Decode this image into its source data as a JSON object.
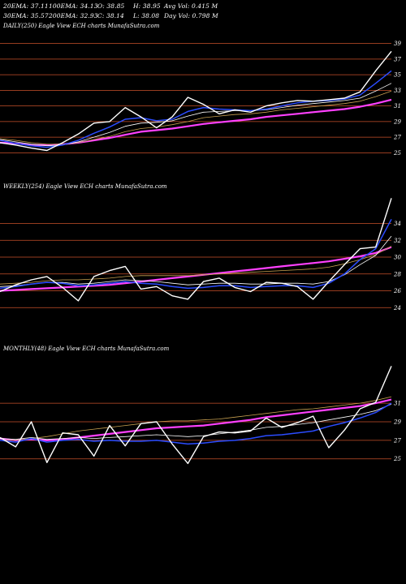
{
  "header": {
    "row1": [
      {
        "label": "20EMA: 37.11"
      },
      {
        "label": "100EMA: 34.13"
      },
      {
        "label": "O: 38.85"
      },
      {
        "label": "H: 38.95"
      },
      {
        "label": "Avg Vol: 0.415 M"
      }
    ],
    "row2": [
      {
        "label": "30EMA: 35.57"
      },
      {
        "label": "200EMA: 32.93"
      },
      {
        "label": "C: 38.14"
      },
      {
        "label": "L: 38.08"
      },
      {
        "label": "Day Vol: 0.798 M"
      }
    ]
  },
  "colors": {
    "price": "#ffffff",
    "ema_fast": "#2b4cff",
    "ema_mid": "#ffffff",
    "ema_slow": "#c8a050",
    "ema_long": "#ff40ff",
    "gridline": "#c8502a"
  },
  "chart_data": [
    {
      "type": "line",
      "title": "DAILY(250) Eagle  View  ECH charts MunafaSutra.com",
      "yticks": [
        25,
        27,
        29,
        31,
        33,
        35,
        37,
        39
      ],
      "ylim": [
        24,
        40
      ],
      "x": [
        0,
        10,
        20,
        30,
        40,
        50,
        60,
        70,
        80,
        90,
        100,
        110,
        120,
        130,
        140,
        150,
        160,
        170,
        180,
        190,
        200,
        210,
        220,
        230,
        240,
        250
      ],
      "series": [
        {
          "role": "price",
          "values": [
            26.3,
            26.0,
            25.6,
            25.3,
            26.3,
            27.4,
            28.8,
            29.0,
            30.8,
            29.6,
            28.2,
            29.6,
            32.1,
            31.2,
            30.0,
            30.5,
            30.2,
            31.0,
            31.4,
            31.7,
            31.6,
            31.8,
            32.0,
            32.8,
            35.5,
            38.0
          ]
        },
        {
          "role": "ema_fast",
          "values": [
            26.6,
            26.2,
            25.9,
            25.7,
            26.0,
            26.6,
            27.5,
            28.3,
            29.3,
            29.5,
            29.1,
            29.3,
            30.3,
            30.8,
            30.6,
            30.5,
            30.4,
            30.6,
            31.0,
            31.4,
            31.6,
            31.7,
            31.9,
            32.4,
            33.9,
            35.5
          ]
        },
        {
          "role": "ema_mid",
          "values": [
            26.7,
            26.4,
            26.1,
            25.9,
            26.0,
            26.4,
            27.0,
            27.6,
            28.4,
            28.8,
            28.9,
            29.1,
            29.7,
            30.2,
            30.3,
            30.4,
            30.4,
            30.5,
            30.8,
            31.1,
            31.3,
            31.5,
            31.7,
            32.0,
            32.9,
            33.9
          ]
        },
        {
          "role": "ema_slow",
          "values": [
            26.8,
            26.6,
            26.3,
            26.1,
            26.1,
            26.3,
            26.7,
            27.1,
            27.7,
            28.1,
            28.3,
            28.6,
            29.0,
            29.5,
            29.7,
            29.9,
            30.0,
            30.2,
            30.5,
            30.7,
            30.9,
            31.1,
            31.3,
            31.6,
            32.2,
            32.9
          ]
        },
        {
          "role": "ema_long",
          "values": [
            26.3,
            26.2,
            26.0,
            26.0,
            26.1,
            26.3,
            26.6,
            26.9,
            27.3,
            27.7,
            27.9,
            28.1,
            28.4,
            28.7,
            28.9,
            29.1,
            29.3,
            29.6,
            29.8,
            30.0,
            30.2,
            30.4,
            30.6,
            30.9,
            31.3,
            31.8
          ]
        }
      ]
    },
    {
      "type": "line",
      "title": "WEEKLY(254) Eagle  View  ECH charts MunafaSutra.com",
      "yticks": [
        24,
        26,
        28,
        30,
        32,
        34
      ],
      "ylim": [
        22,
        38
      ],
      "x": [
        0,
        10,
        20,
        30,
        40,
        50,
        60,
        70,
        80,
        90,
        100,
        110,
        120,
        130,
        140,
        150,
        160,
        170,
        180,
        190,
        200,
        210,
        220,
        230,
        240,
        250
      ],
      "series": [
        {
          "role": "price",
          "values": [
            25.9,
            26.7,
            27.3,
            27.7,
            26.4,
            24.8,
            27.7,
            28.4,
            28.9,
            26.2,
            26.5,
            25.4,
            25.0,
            27.1,
            27.5,
            26.4,
            25.9,
            27.0,
            26.9,
            26.5,
            25.0,
            27.1,
            29.1,
            31.0,
            31.2,
            37.0
          ]
        },
        {
          "role": "ema_fast",
          "values": [
            26.3,
            26.5,
            26.8,
            27.0,
            26.9,
            26.6,
            26.7,
            26.9,
            27.1,
            26.9,
            26.8,
            26.5,
            26.3,
            26.4,
            26.6,
            26.6,
            26.4,
            26.5,
            26.6,
            26.6,
            26.4,
            26.9,
            28.0,
            29.7,
            31.0,
            34.5
          ]
        },
        {
          "role": "ema_mid",
          "values": [
            26.5,
            26.6,
            26.8,
            27.0,
            27.0,
            26.8,
            26.9,
            27.1,
            27.3,
            27.2,
            27.1,
            26.9,
            26.7,
            26.8,
            26.9,
            26.9,
            26.8,
            26.8,
            26.9,
            26.9,
            26.8,
            27.1,
            27.9,
            29.1,
            30.2,
            32.5
          ]
        },
        {
          "role": "ema_slow",
          "values": [
            26.8,
            26.9,
            27.0,
            27.2,
            27.3,
            27.3,
            27.4,
            27.5,
            27.7,
            27.8,
            27.8,
            27.8,
            27.8,
            27.9,
            28.0,
            28.1,
            28.2,
            28.3,
            28.4,
            28.5,
            28.6,
            28.8,
            29.2,
            29.7,
            30.3,
            31.3
          ]
        },
        {
          "role": "ema_long",
          "values": [
            26.0,
            26.1,
            26.2,
            26.3,
            26.4,
            26.5,
            26.6,
            26.7,
            26.9,
            27.1,
            27.3,
            27.5,
            27.7,
            27.9,
            28.1,
            28.3,
            28.5,
            28.7,
            28.9,
            29.1,
            29.3,
            29.5,
            29.8,
            30.1,
            30.5,
            31.2
          ]
        }
      ]
    },
    {
      "type": "line",
      "title": "MONTHLY(48) Eagle  View  ECH charts MunafaSutra.com",
      "yticks": [
        25,
        27,
        29,
        31
      ],
      "ylim": [
        22,
        36
      ],
      "x": [
        0,
        10,
        20,
        30,
        40,
        50,
        60,
        70,
        80,
        90,
        100,
        110,
        120,
        130,
        140,
        150,
        160,
        170,
        180,
        190,
        200,
        210,
        220,
        230,
        240,
        250
      ],
      "series": [
        {
          "role": "price",
          "values": [
            27.3,
            26.3,
            29.0,
            24.6,
            27.8,
            27.6,
            25.3,
            28.6,
            26.4,
            28.8,
            29.0,
            26.6,
            24.5,
            27.4,
            27.9,
            27.8,
            28.0,
            29.4,
            28.4,
            28.9,
            29.6,
            26.2,
            28.1,
            30.4,
            31.1,
            35.0
          ]
        },
        {
          "role": "ema_fast",
          "values": [
            27.0,
            26.8,
            27.2,
            26.8,
            27.0,
            27.1,
            26.9,
            27.0,
            26.9,
            26.9,
            27.0,
            26.8,
            26.6,
            26.7,
            26.9,
            27.0,
            27.2,
            27.5,
            27.6,
            27.8,
            28.0,
            28.5,
            28.9,
            29.4,
            30.0,
            31.0
          ]
        },
        {
          "role": "ema_mid",
          "values": [
            27.2,
            27.1,
            27.3,
            27.1,
            27.2,
            27.3,
            27.2,
            27.3,
            27.4,
            27.5,
            27.6,
            27.5,
            27.4,
            27.5,
            27.7,
            27.9,
            28.1,
            28.4,
            28.5,
            28.7,
            28.9,
            29.2,
            29.5,
            29.8,
            30.2,
            30.9
          ]
        },
        {
          "role": "ema_slow",
          "values": [
            27.0,
            27.0,
            27.2,
            27.4,
            27.7,
            28.0,
            28.2,
            28.4,
            28.6,
            28.8,
            29.0,
            29.1,
            29.1,
            29.2,
            29.3,
            29.5,
            29.7,
            29.9,
            30.1,
            30.3,
            30.4,
            30.6,
            30.8,
            31.0,
            31.3,
            31.7
          ]
        },
        {
          "role": "ema_long",
          "values": [
            27.2,
            27.0,
            27.1,
            27.0,
            27.1,
            27.3,
            27.5,
            27.7,
            27.9,
            28.1,
            28.3,
            28.4,
            28.5,
            28.6,
            28.8,
            29.0,
            29.2,
            29.5,
            29.7,
            29.9,
            30.1,
            30.3,
            30.5,
            30.7,
            31.0,
            31.4
          ]
        }
      ]
    }
  ]
}
